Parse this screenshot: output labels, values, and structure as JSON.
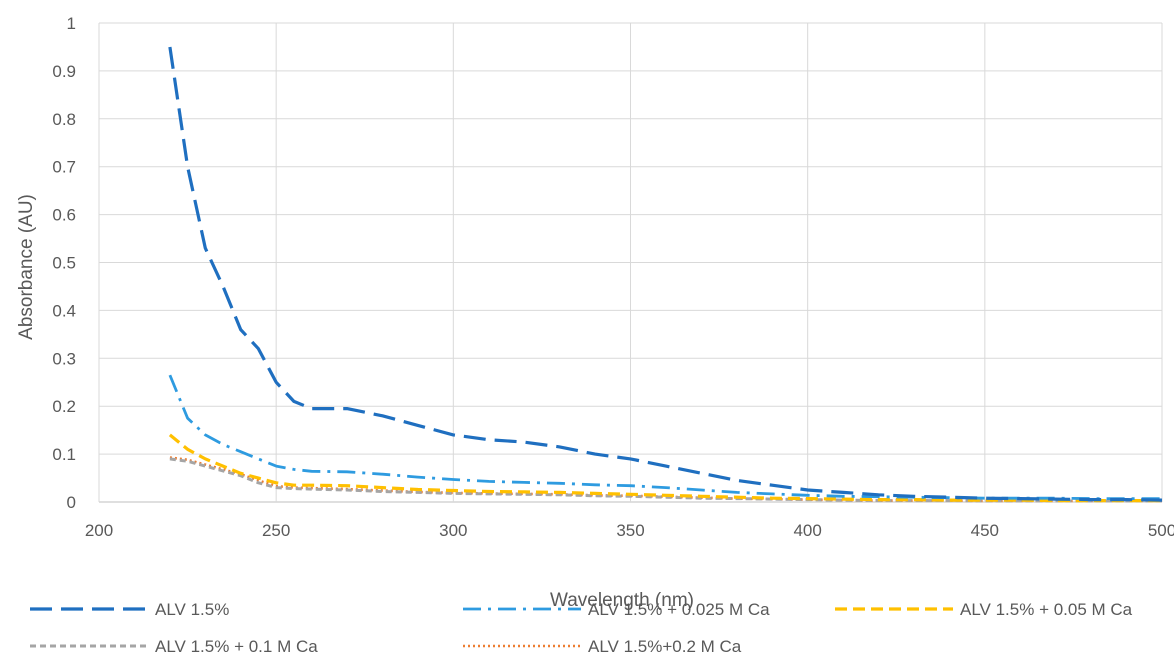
{
  "chart_data": {
    "type": "line",
    "title": "",
    "xlabel": "Wavelength (nm)",
    "ylabel": "Absorbance (AU)",
    "xlim": [
      200,
      500
    ],
    "ylim": [
      0,
      1
    ],
    "x_ticks": [
      200,
      250,
      300,
      350,
      400,
      450,
      500
    ],
    "y_ticks": [
      0,
      0.1,
      0.2,
      0.3,
      0.4,
      0.5,
      0.6,
      0.7,
      0.8,
      0.9,
      1
    ],
    "y_tick_labels": [
      "0",
      "0.1",
      "0.2",
      "0.3",
      "0.4",
      "0.5",
      "0.6",
      "0.7",
      "0.8",
      "0.9",
      "1"
    ],
    "grid": true,
    "legend_position": "bottom",
    "series": [
      {
        "name": "ALV 1.5%",
        "color": "#1f6fc0",
        "style": "long-dash",
        "x": [
          220,
          225,
          230,
          235,
          240,
          245,
          250,
          255,
          260,
          270,
          280,
          290,
          300,
          310,
          320,
          330,
          340,
          350,
          360,
          370,
          380,
          390,
          400,
          410,
          420,
          430,
          440,
          450,
          460,
          470,
          480,
          490,
          500
        ],
        "y": [
          0.95,
          0.7,
          0.53,
          0.45,
          0.36,
          0.32,
          0.25,
          0.21,
          0.195,
          0.195,
          0.18,
          0.16,
          0.14,
          0.13,
          0.125,
          0.115,
          0.1,
          0.09,
          0.075,
          0.06,
          0.045,
          0.035,
          0.025,
          0.02,
          0.015,
          0.012,
          0.01,
          0.008,
          0.007,
          0.006,
          0.005,
          0.005,
          0.004
        ]
      },
      {
        "name": "ALV 1.5% + 0.025 M Ca",
        "color": "#2e9be0",
        "style": "dash-dot",
        "x": [
          220,
          225,
          230,
          235,
          240,
          245,
          250,
          255,
          260,
          270,
          280,
          290,
          300,
          310,
          320,
          330,
          340,
          350,
          360,
          370,
          380,
          390,
          400,
          410,
          420,
          430,
          440,
          450,
          460,
          470,
          480,
          490,
          500
        ],
        "y": [
          0.265,
          0.175,
          0.14,
          0.12,
          0.105,
          0.09,
          0.075,
          0.068,
          0.064,
          0.063,
          0.058,
          0.052,
          0.047,
          0.043,
          0.041,
          0.039,
          0.036,
          0.034,
          0.03,
          0.025,
          0.02,
          0.017,
          0.014,
          0.012,
          0.011,
          0.01,
          0.009,
          0.008,
          0.008,
          0.008,
          0.007,
          0.007,
          0.007
        ]
      },
      {
        "name": "ALV 1.5% + 0.05 M Ca",
        "color": "#ffc000",
        "style": "medium-dash",
        "x": [
          220,
          225,
          230,
          235,
          240,
          245,
          250,
          255,
          260,
          270,
          280,
          290,
          300,
          310,
          320,
          330,
          340,
          350,
          360,
          370,
          380,
          390,
          400,
          410,
          420,
          430,
          440,
          450,
          460,
          470,
          480,
          490,
          500
        ],
        "y": [
          0.14,
          0.11,
          0.09,
          0.075,
          0.06,
          0.05,
          0.04,
          0.035,
          0.035,
          0.034,
          0.03,
          0.026,
          0.024,
          0.022,
          0.021,
          0.02,
          0.018,
          0.016,
          0.014,
          0.012,
          0.01,
          0.008,
          0.007,
          0.006,
          0.005,
          0.005,
          0.004,
          0.004,
          0.004,
          0.003,
          0.003,
          0.003,
          0.003
        ]
      },
      {
        "name": "ALV 1.5% + 0.1 M Ca",
        "color": "#a5a5a5",
        "style": "short-dash",
        "x": [
          220,
          225,
          230,
          235,
          240,
          245,
          250,
          255,
          260,
          270,
          280,
          290,
          300,
          310,
          320,
          330,
          340,
          350,
          360,
          370,
          380,
          390,
          400,
          410,
          420,
          430,
          440,
          450,
          460,
          470,
          480,
          490,
          500
        ],
        "y": [
          0.09,
          0.085,
          0.075,
          0.065,
          0.055,
          0.04,
          0.03,
          0.028,
          0.027,
          0.025,
          0.022,
          0.02,
          0.018,
          0.017,
          0.016,
          0.015,
          0.013,
          0.012,
          0.01,
          0.008,
          0.007,
          0.006,
          0.005,
          0.004,
          0.003,
          0.003,
          0.003,
          0.002,
          0.002,
          0.002,
          0.002,
          0.002,
          0.002
        ]
      },
      {
        "name": "ALV 1.5%+0.2 M Ca",
        "color": "#ed7d31",
        "style": "dotted",
        "x": [
          220,
          225,
          230,
          235,
          240,
          245,
          250,
          255,
          260,
          270,
          280,
          290,
          300,
          310,
          320,
          330,
          340,
          350,
          360,
          370,
          380,
          390,
          400,
          410,
          420,
          430,
          440,
          450,
          460,
          470,
          480,
          490,
          500
        ],
        "y": [
          0.093,
          0.088,
          0.078,
          0.068,
          0.058,
          0.045,
          0.033,
          0.03,
          0.029,
          0.027,
          0.024,
          0.021,
          0.019,
          0.018,
          0.017,
          0.016,
          0.014,
          0.013,
          0.011,
          0.009,
          0.007,
          0.006,
          0.005,
          0.004,
          0.003,
          0.003,
          0.003,
          0.002,
          0.002,
          0.002,
          0.002,
          0.002,
          0.002
        ]
      }
    ]
  }
}
